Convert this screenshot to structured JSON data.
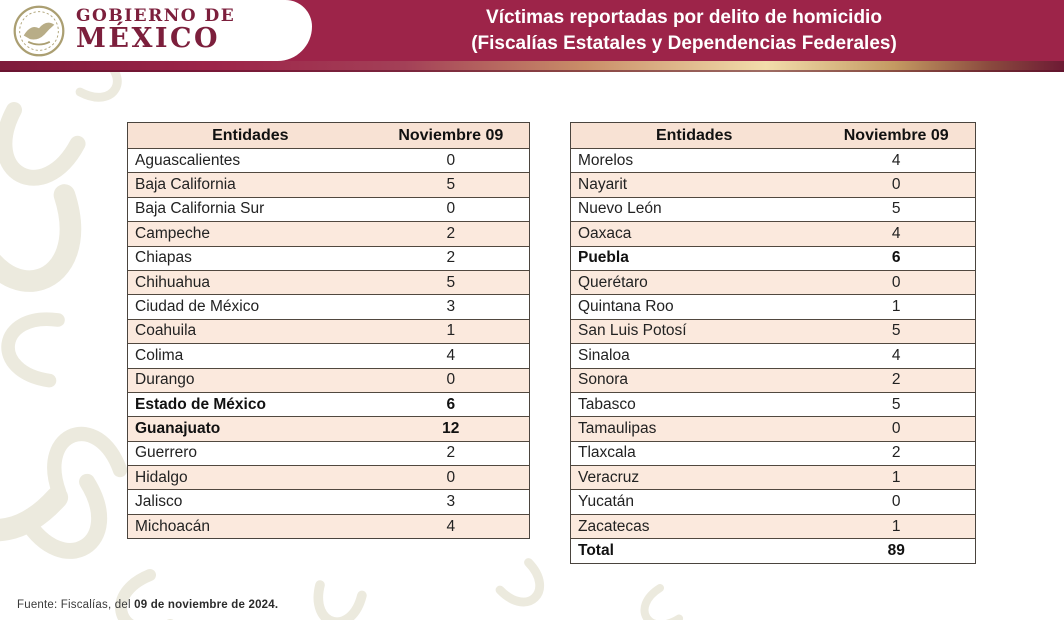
{
  "header": {
    "logo_line1": "GOBIERNO DE",
    "logo_line2": "MÉXICO",
    "title_line1": "Víctimas reportadas por delito de homicidio",
    "title_line2": "(Fiscalías Estatales y Dependencias Federales)"
  },
  "colors": {
    "header_maroon": "#9d2449",
    "wordmark_maroon": "#7c1f3c",
    "row_pink": "#fbe9dd",
    "header_row_pink": "#f8e2d4",
    "strip_gold": "#f2ddab",
    "table_border": "#4a443e",
    "watermark": "#eceade"
  },
  "tables": {
    "left": {
      "headers": [
        "Entidades",
        "Noviembre 09"
      ],
      "rows": [
        {
          "entidad": "Aguascalientes",
          "valor": "0",
          "bold": false
        },
        {
          "entidad": "Baja California",
          "valor": "5",
          "bold": false
        },
        {
          "entidad": "Baja California Sur",
          "valor": "0",
          "bold": false
        },
        {
          "entidad": "Campeche",
          "valor": "2",
          "bold": false
        },
        {
          "entidad": "Chiapas",
          "valor": "2",
          "bold": false
        },
        {
          "entidad": "Chihuahua",
          "valor": "5",
          "bold": false
        },
        {
          "entidad": "Ciudad de México",
          "valor": "3",
          "bold": false
        },
        {
          "entidad": "Coahuila",
          "valor": "1",
          "bold": false
        },
        {
          "entidad": "Colima",
          "valor": "4",
          "bold": false
        },
        {
          "entidad": "Durango",
          "valor": "0",
          "bold": false
        },
        {
          "entidad": "Estado de México",
          "valor": "6",
          "bold": true
        },
        {
          "entidad": "Guanajuato",
          "valor": "12",
          "bold": true
        },
        {
          "entidad": "Guerrero",
          "valor": "2",
          "bold": false
        },
        {
          "entidad": "Hidalgo",
          "valor": "0",
          "bold": false
        },
        {
          "entidad": "Jalisco",
          "valor": "3",
          "bold": false
        },
        {
          "entidad": "Michoacán",
          "valor": "4",
          "bold": false
        }
      ]
    },
    "right": {
      "headers": [
        "Entidades",
        "Noviembre 09"
      ],
      "rows": [
        {
          "entidad": "Morelos",
          "valor": "4",
          "bold": false
        },
        {
          "entidad": "Nayarit",
          "valor": "0",
          "bold": false
        },
        {
          "entidad": "Nuevo León",
          "valor": "5",
          "bold": false
        },
        {
          "entidad": "Oaxaca",
          "valor": "4",
          "bold": false
        },
        {
          "entidad": "Puebla",
          "valor": "6",
          "bold": true
        },
        {
          "entidad": "Querétaro",
          "valor": "0",
          "bold": false
        },
        {
          "entidad": "Quintana Roo",
          "valor": "1",
          "bold": false
        },
        {
          "entidad": "San Luis Potosí",
          "valor": "5",
          "bold": false
        },
        {
          "entidad": "Sinaloa",
          "valor": "4",
          "bold": false
        },
        {
          "entidad": "Sonora",
          "valor": "2",
          "bold": false
        },
        {
          "entidad": "Tabasco",
          "valor": "5",
          "bold": false
        },
        {
          "entidad": "Tamaulipas",
          "valor": "0",
          "bold": false
        },
        {
          "entidad": "Tlaxcala",
          "valor": "2",
          "bold": false
        },
        {
          "entidad": "Veracruz",
          "valor": "1",
          "bold": false
        },
        {
          "entidad": "Yucatán",
          "valor": "0",
          "bold": false
        },
        {
          "entidad": "Zacatecas",
          "valor": "1",
          "bold": false
        },
        {
          "entidad": "Total",
          "valor": "89",
          "bold": true
        }
      ]
    }
  },
  "footer": {
    "prefix": "Fuente: Fiscalías, del ",
    "bold_date": "09 de noviembre de 2024."
  }
}
